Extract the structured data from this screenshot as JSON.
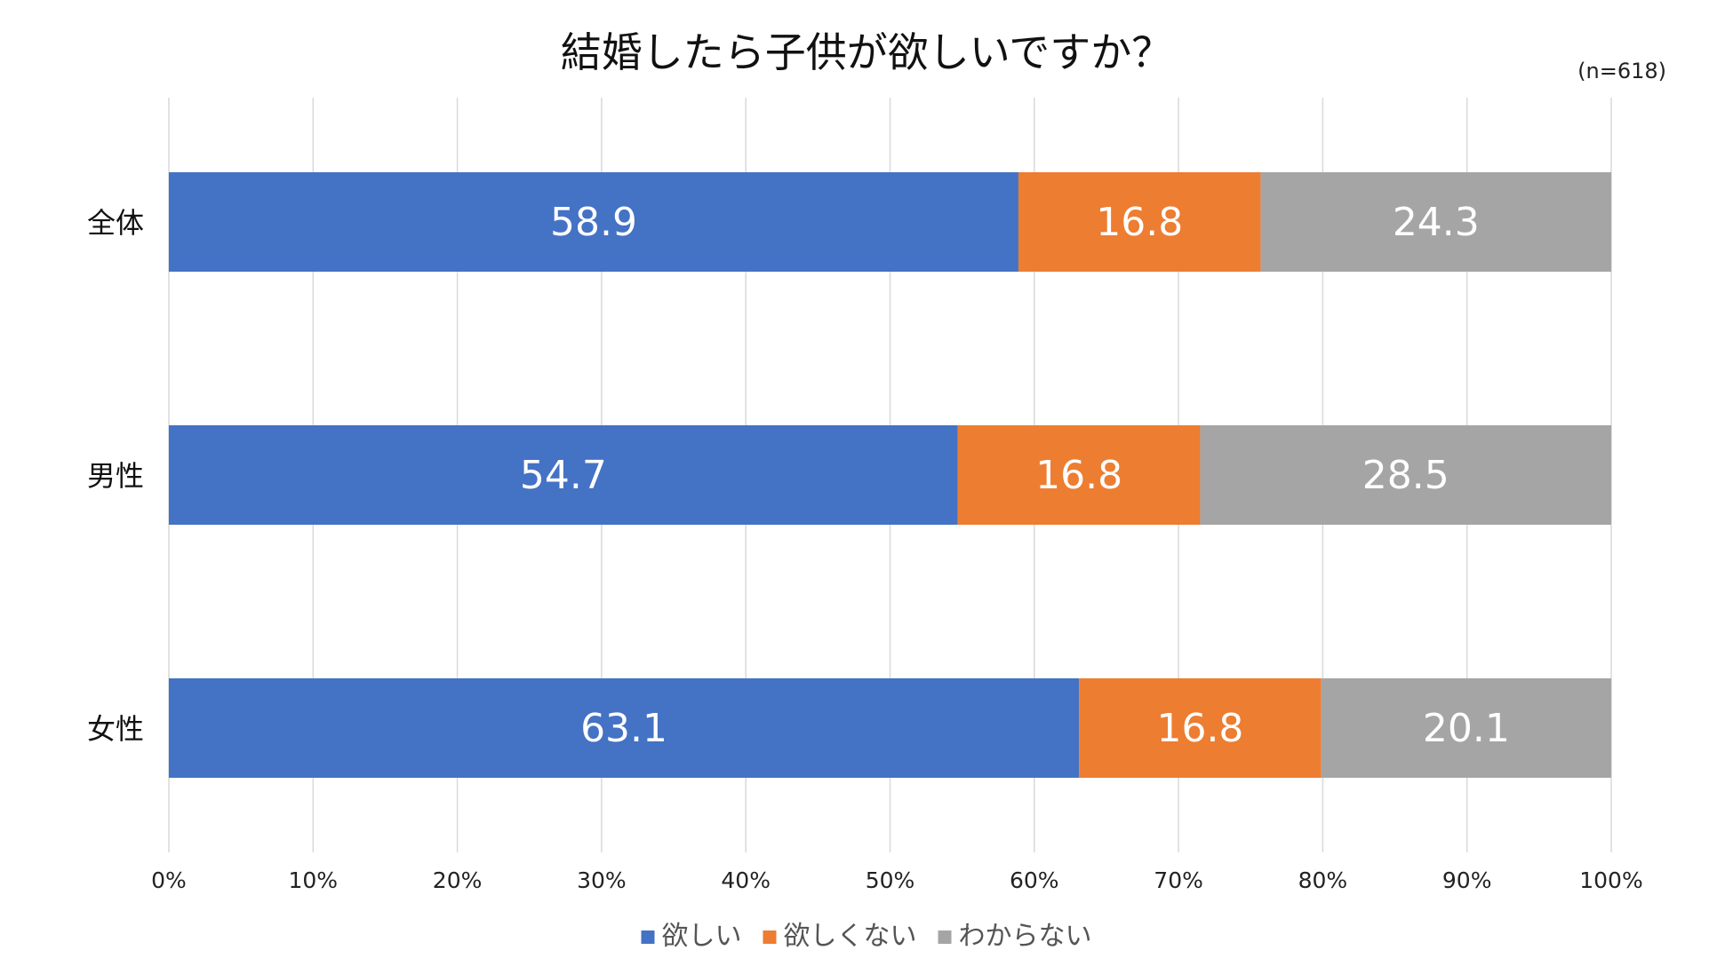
{
  "chart_data": {
    "type": "bar",
    "orientation": "horizontal",
    "stacked": true,
    "title": "結婚したら子供が欲しいですか？",
    "note": "(n=618)",
    "categories": [
      "全体",
      "男性",
      "女性"
    ],
    "series": [
      {
        "name": "欲しい",
        "color": "#4472C4",
        "values": [
          58.9,
          54.7,
          63.1
        ],
        "labels": [
          "58.9",
          "54.7",
          "63.1"
        ]
      },
      {
        "name": "欲しくない",
        "color": "#ED7D31",
        "values": [
          16.8,
          16.8,
          16.8
        ],
        "labels": [
          "16.8",
          "16.8",
          "16.8"
        ]
      },
      {
        "name": "わからない",
        "color": "#A5A5A5",
        "values": [
          24.3,
          28.5,
          20.1
        ],
        "labels": [
          "24.3",
          "28.5",
          "20.1"
        ]
      }
    ],
    "xlim": [
      0,
      100
    ],
    "xticks": [
      0,
      10,
      20,
      30,
      40,
      50,
      60,
      70,
      80,
      90,
      100
    ],
    "xtick_labels": [
      "0%",
      "10%",
      "20%",
      "30%",
      "40%",
      "50%",
      "60%",
      "70%",
      "80%",
      "90%",
      "100%"
    ],
    "xlabel": "",
    "ylabel": "",
    "grid": true,
    "legend_position": "bottom"
  }
}
